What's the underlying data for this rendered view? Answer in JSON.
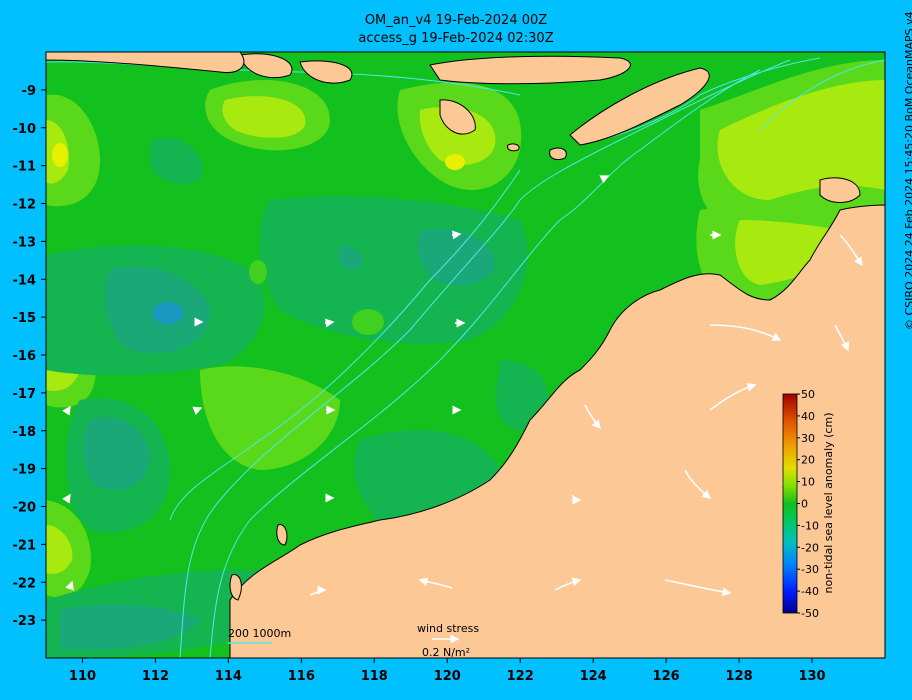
{
  "title": {
    "line1": "OM_an_v4  19-Feb-2024 00Z",
    "line2": "access_g 19-Feb-2024 02:30Z"
  },
  "map": {
    "lon_range": [
      109,
      132
    ],
    "lat_range": [
      -24,
      -8
    ],
    "lon_ticks": [
      "110",
      "112",
      "114",
      "116",
      "118",
      "120",
      "122",
      "124",
      "126",
      "128",
      "130"
    ],
    "lat_ticks": [
      "-9",
      "-10",
      "-11",
      "-12",
      "-13",
      "-14",
      "-15",
      "-16",
      "-17",
      "-18",
      "-19",
      "-20",
      "-21",
      "-22",
      "-23"
    ],
    "land_color": "#fcc896",
    "ocean_base_color": "#12c01e"
  },
  "bathymetry_legend": {
    "label": "200  1000m",
    "line_color": "#4fe8e8"
  },
  "wind_legend": {
    "label": "wind stress",
    "units": "0.2 N/m²"
  },
  "colorbar": {
    "label": "non-tidal sea level anomaly (cm)",
    "ticks": [
      "50",
      "40",
      "30",
      "20",
      "10",
      "0",
      "-10",
      "-20",
      "-30",
      "-40",
      "-50"
    ],
    "range": [
      -50,
      50
    ],
    "colors": [
      "#00008f",
      "#0020ff",
      "#0080ff",
      "#00c0c0",
      "#00d060",
      "#10c820",
      "#80e000",
      "#e0e000",
      "#f0a000",
      "#e05000",
      "#a00000"
    ]
  },
  "credit": "© CSIRO 2024   24 Feb 2024 15:45:20 BoM OceanMAPS v4"
}
